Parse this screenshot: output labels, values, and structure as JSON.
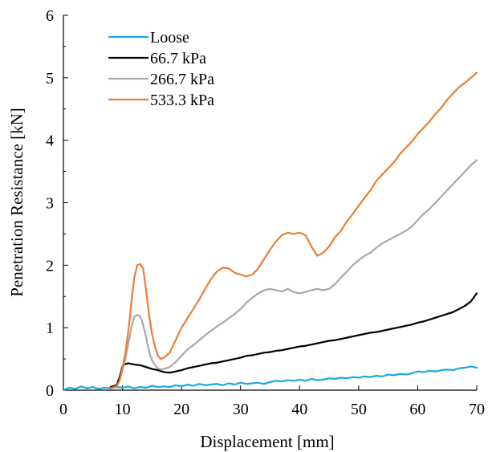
{
  "chart_data": {
    "type": "line",
    "xlabel": "Displacement [mm]",
    "ylabel": "Penetration Resistance [kN]",
    "xlim": [
      0,
      70
    ],
    "ylim": [
      0,
      6
    ],
    "x_ticks": [
      "0",
      "10",
      "20",
      "30",
      "40",
      "50",
      "60",
      "70"
    ],
    "y_ticks": [
      "0",
      "1",
      "2",
      "3",
      "4",
      "5",
      "6"
    ],
    "grid": false,
    "legend_position": "top-left",
    "series": [
      {
        "name": "Loose",
        "color": "#1aa9e0",
        "x": [
          0,
          1,
          2,
          3,
          4,
          5,
          6,
          7,
          8,
          9,
          10,
          11,
          12,
          13,
          14,
          15,
          16,
          17,
          18,
          19,
          20,
          21,
          22,
          23,
          24,
          25,
          26,
          27,
          28,
          29,
          30,
          31,
          32,
          33,
          34,
          35,
          36,
          37,
          38,
          39,
          40,
          41,
          42,
          43,
          44,
          45,
          46,
          47,
          48,
          49,
          50,
          51,
          52,
          53,
          54,
          55,
          56,
          57,
          58,
          59,
          60,
          61,
          62,
          63,
          64,
          65,
          66,
          67,
          68,
          69,
          70
        ],
        "y": [
          0.0,
          0.04,
          0.02,
          0.06,
          0.03,
          0.05,
          0.02,
          0.04,
          0.03,
          0.05,
          0.04,
          0.06,
          0.03,
          0.05,
          0.04,
          0.07,
          0.05,
          0.06,
          0.05,
          0.08,
          0.06,
          0.09,
          0.07,
          0.1,
          0.08,
          0.09,
          0.1,
          0.08,
          0.11,
          0.09,
          0.12,
          0.1,
          0.11,
          0.12,
          0.1,
          0.13,
          0.15,
          0.14,
          0.16,
          0.15,
          0.17,
          0.15,
          0.18,
          0.16,
          0.17,
          0.19,
          0.18,
          0.2,
          0.19,
          0.21,
          0.2,
          0.22,
          0.21,
          0.23,
          0.22,
          0.25,
          0.24,
          0.26,
          0.25,
          0.27,
          0.3,
          0.29,
          0.31,
          0.3,
          0.32,
          0.33,
          0.32,
          0.35,
          0.36,
          0.38,
          0.36
        ]
      },
      {
        "name": "66.7 kPa",
        "color": "#000000",
        "x": [
          8,
          9,
          9.5,
          10,
          10.5,
          11,
          12,
          13,
          14,
          15,
          16,
          17,
          18,
          19,
          20,
          21,
          22,
          23,
          24,
          25,
          26,
          27,
          28,
          29,
          30,
          31,
          32,
          33,
          34,
          35,
          36,
          37,
          38,
          39,
          40,
          41,
          42,
          43,
          44,
          45,
          46,
          47,
          48,
          49,
          50,
          51,
          52,
          53,
          54,
          55,
          56,
          57,
          58,
          59,
          60,
          61,
          62,
          63,
          64,
          65,
          66,
          67,
          68,
          69,
          70
        ],
        "y": [
          0.05,
          0.08,
          0.2,
          0.38,
          0.42,
          0.43,
          0.41,
          0.4,
          0.37,
          0.34,
          0.32,
          0.29,
          0.28,
          0.3,
          0.32,
          0.35,
          0.37,
          0.39,
          0.41,
          0.43,
          0.44,
          0.46,
          0.48,
          0.5,
          0.52,
          0.55,
          0.56,
          0.58,
          0.6,
          0.61,
          0.63,
          0.64,
          0.66,
          0.68,
          0.7,
          0.71,
          0.73,
          0.75,
          0.77,
          0.79,
          0.8,
          0.82,
          0.84,
          0.86,
          0.88,
          0.9,
          0.92,
          0.93,
          0.95,
          0.97,
          0.99,
          1.01,
          1.03,
          1.05,
          1.08,
          1.1,
          1.13,
          1.16,
          1.19,
          1.22,
          1.25,
          1.3,
          1.35,
          1.42,
          1.55
        ]
      },
      {
        "name": "266.7 kPa",
        "color": "#a8a8a8",
        "x": [
          8,
          9,
          9.5,
          10,
          10.5,
          11,
          11.5,
          12,
          12.5,
          13,
          13.5,
          14,
          14.5,
          15,
          15.5,
          16,
          16.5,
          17,
          18,
          19,
          20,
          21,
          22,
          23,
          24,
          25,
          26,
          27,
          28,
          29,
          30,
          31,
          32,
          33,
          34,
          35,
          36,
          37,
          38,
          39,
          40,
          41,
          42,
          43,
          44,
          45,
          46,
          47,
          48,
          49,
          50,
          51,
          52,
          53,
          54,
          55,
          56,
          57,
          58,
          59,
          60,
          61,
          62,
          63,
          64,
          65,
          66,
          67,
          68,
          69,
          70
        ],
        "y": [
          0.03,
          0.06,
          0.15,
          0.32,
          0.5,
          0.75,
          1.0,
          1.17,
          1.21,
          1.18,
          1.05,
          0.85,
          0.62,
          0.48,
          0.4,
          0.35,
          0.33,
          0.34,
          0.37,
          0.45,
          0.55,
          0.65,
          0.72,
          0.8,
          0.88,
          0.95,
          1.02,
          1.08,
          1.15,
          1.22,
          1.3,
          1.4,
          1.48,
          1.55,
          1.6,
          1.62,
          1.6,
          1.58,
          1.62,
          1.57,
          1.55,
          1.57,
          1.6,
          1.62,
          1.6,
          1.62,
          1.7,
          1.8,
          1.9,
          2.0,
          2.08,
          2.15,
          2.2,
          2.28,
          2.35,
          2.4,
          2.45,
          2.5,
          2.55,
          2.62,
          2.72,
          2.82,
          2.9,
          3.0,
          3.1,
          3.2,
          3.3,
          3.4,
          3.5,
          3.6,
          3.68
        ]
      },
      {
        "name": "533.3 kPa",
        "color": "#ed7d31",
        "x": [
          8,
          9,
          9.5,
          10,
          10.5,
          11,
          11.5,
          12,
          12.5,
          13,
          13.5,
          14,
          14.5,
          15,
          15.5,
          16,
          16.5,
          17,
          18,
          19,
          20,
          21,
          22,
          23,
          24,
          25,
          26,
          27,
          28,
          29,
          30,
          31,
          32,
          33,
          34,
          35,
          36,
          37,
          38,
          39,
          40,
          41,
          42,
          43,
          44,
          45,
          46,
          47,
          48,
          49,
          50,
          51,
          52,
          53,
          54,
          55,
          56,
          57,
          58,
          59,
          60,
          61,
          62,
          63,
          64,
          65,
          66,
          67,
          68,
          69,
          70
        ],
        "y": [
          0.03,
          0.06,
          0.15,
          0.35,
          0.6,
          0.95,
          1.4,
          1.8,
          2.0,
          2.02,
          1.95,
          1.6,
          1.2,
          0.9,
          0.7,
          0.55,
          0.5,
          0.52,
          0.6,
          0.8,
          1.0,
          1.15,
          1.3,
          1.45,
          1.62,
          1.78,
          1.9,
          1.96,
          1.95,
          1.88,
          1.85,
          1.82,
          1.85,
          1.95,
          2.1,
          2.25,
          2.38,
          2.48,
          2.52,
          2.5,
          2.52,
          2.48,
          2.3,
          2.15,
          2.2,
          2.3,
          2.45,
          2.55,
          2.7,
          2.82,
          2.95,
          3.08,
          3.2,
          3.35,
          3.45,
          3.55,
          3.65,
          3.78,
          3.88,
          3.98,
          4.1,
          4.2,
          4.3,
          4.42,
          4.52,
          4.65,
          4.75,
          4.85,
          4.92,
          5.0,
          5.08
        ]
      }
    ]
  }
}
